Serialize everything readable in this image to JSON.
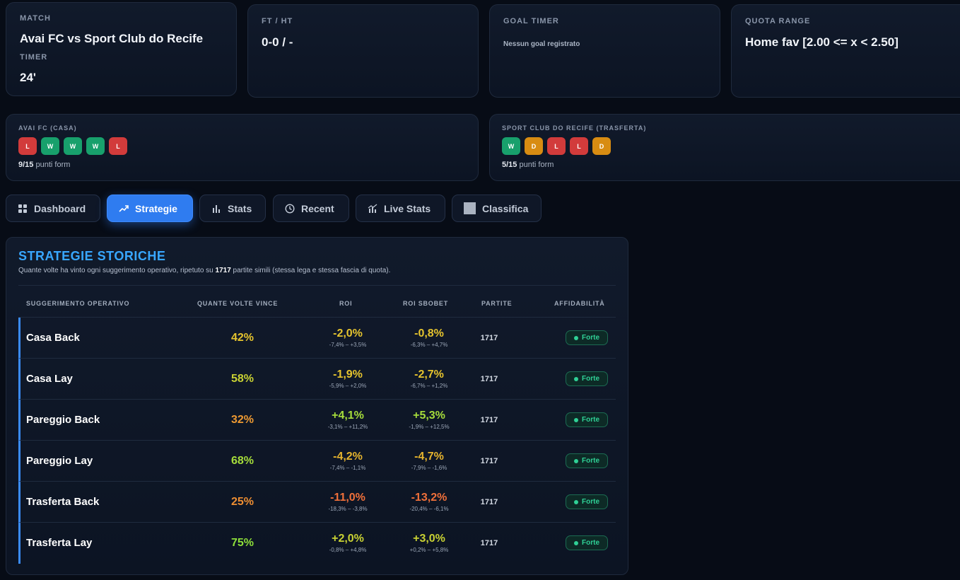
{
  "match_card": {
    "match_label": "MATCH",
    "match_value": "Avai FC vs Sport Club do Recife",
    "timer_label": "TIMER",
    "timer_value": "24'"
  },
  "ft_card": {
    "label": "FT / HT",
    "value": "0-0 / -"
  },
  "goal_card": {
    "label": "GOAL TIMER",
    "value": "Nessun goal registrato"
  },
  "quota_card": {
    "label": "QUOTA RANGE",
    "value": "Home fav [2.00 <= x < 2.50]"
  },
  "home_form": {
    "label": "AVAI FC (CASA)",
    "results": [
      "L",
      "W",
      "W",
      "W",
      "L"
    ],
    "points": "9/15",
    "points_suffix": "punti form"
  },
  "away_form": {
    "label": "SPORT CLUB DO RECIFE (TRASFERTA)",
    "results": [
      "W",
      "D",
      "L",
      "L",
      "D"
    ],
    "points": "5/15",
    "points_suffix": "punti form"
  },
  "tabs": [
    {
      "label": "Dashboard",
      "icon": "grid-icon",
      "active": false
    },
    {
      "label": "Strategie",
      "icon": "trend-up-icon",
      "active": true
    },
    {
      "label": "Stats",
      "icon": "bar-chart-icon",
      "active": false
    },
    {
      "label": "Recent",
      "icon": "clock-icon",
      "active": false
    },
    {
      "label": "Live Stats",
      "icon": "live-chart-icon",
      "active": false
    },
    {
      "label": "Classifica",
      "icon": "square-icon",
      "active": false
    }
  ],
  "strategies": {
    "title": "STRATEGIE STORICHE",
    "subtitle_pre": "Quante volte ha vinto ogni suggerimento operativo, ripetuto su ",
    "subtitle_count": "1717",
    "subtitle_post": " partite simili (stessa lega e stessa fascia di quota).",
    "columns": [
      "SUGGERIMENTO OPERATIVO",
      "QUANTE VOLTE VINCE",
      "ROI",
      "ROI SBOBET",
      "PARTITE",
      "AFFIDABILITÀ"
    ],
    "rows": [
      {
        "name": "Casa Back",
        "win": "42%",
        "win_color": "#e6c42e",
        "roi": "-2,0%",
        "roi_range": "-7,4% – +3,5%",
        "roi_color": "#e6c42e",
        "sbo": "-0,8%",
        "sbo_range": "-6,3% – +4,7%",
        "sbo_color": "#e6c42e",
        "partite": "1717",
        "badge": "Forte"
      },
      {
        "name": "Casa Lay",
        "win": "58%",
        "win_color": "#c9d233",
        "roi": "-1,9%",
        "roi_range": "-5,9% – +2,0%",
        "roi_color": "#e6c42e",
        "sbo": "-2,7%",
        "sbo_range": "-6,7% – +1,2%",
        "sbo_color": "#e6c42e",
        "partite": "1717",
        "badge": "Forte"
      },
      {
        "name": "Pareggio Back",
        "win": "32%",
        "win_color": "#ee9a32",
        "roi": "+4,1%",
        "roi_range": "-3,1% – +11,2%",
        "roi_color": "#a6dd3b",
        "sbo": "+5,3%",
        "sbo_range": "-1,9% – +12,5%",
        "sbo_color": "#a6dd3b",
        "partite": "1717",
        "badge": "Forte"
      },
      {
        "name": "Pareggio Lay",
        "win": "68%",
        "win_color": "#a6dd3b",
        "roi": "-4,2%",
        "roi_range": "-7,4% – -1,1%",
        "roi_color": "#e6b42e",
        "sbo": "-4,7%",
        "sbo_range": "-7,9% – -1,6%",
        "sbo_color": "#e6b42e",
        "partite": "1717",
        "badge": "Forte"
      },
      {
        "name": "Trasferta Back",
        "win": "25%",
        "win_color": "#ee8e32",
        "roi": "-11,0%",
        "roi_range": "-18,3% – -3,8%",
        "roi_color": "#f0703a",
        "sbo": "-13,2%",
        "sbo_range": "-20,4% – -6,1%",
        "sbo_color": "#f0703a",
        "partite": "1717",
        "badge": "Forte"
      },
      {
        "name": "Trasferta Lay",
        "win": "75%",
        "win_color": "#8ddf3a",
        "roi": "+2,0%",
        "roi_range": "-0,8% – +4,8%",
        "roi_color": "#c9d233",
        "sbo": "+3,0%",
        "sbo_range": "+0,2% – +5,8%",
        "sbo_color": "#c9d233",
        "partite": "1717",
        "badge": "Forte"
      }
    ]
  }
}
